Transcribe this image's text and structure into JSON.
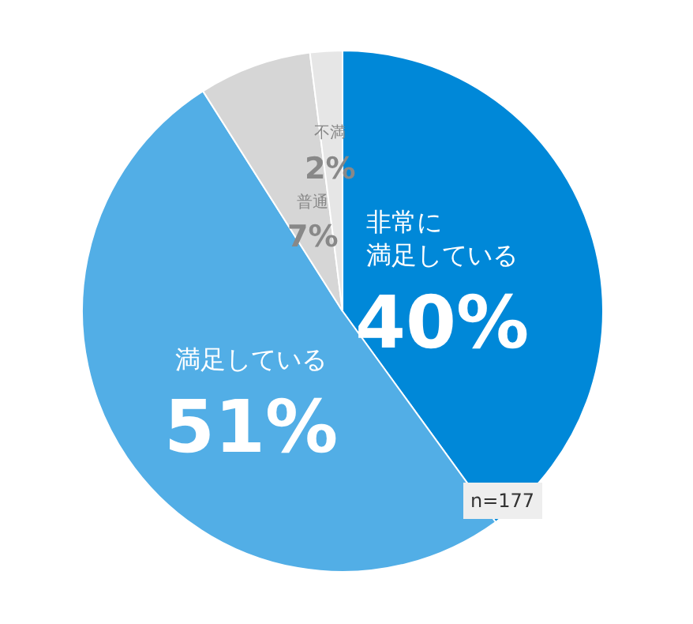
{
  "chart_data": {
    "type": "pie",
    "categories": [
      "非常に満足している",
      "満足している",
      "普通",
      "不満"
    ],
    "values": [
      40,
      51,
      7,
      2
    ],
    "value_labels": [
      "40%",
      "51%",
      "7%",
      "2%"
    ],
    "colors": [
      "#0088d8",
      "#52aee6",
      "#d6d6d6",
      "#e6e6e6"
    ],
    "legend": false,
    "annotations": [
      "n=177"
    ]
  }
}
